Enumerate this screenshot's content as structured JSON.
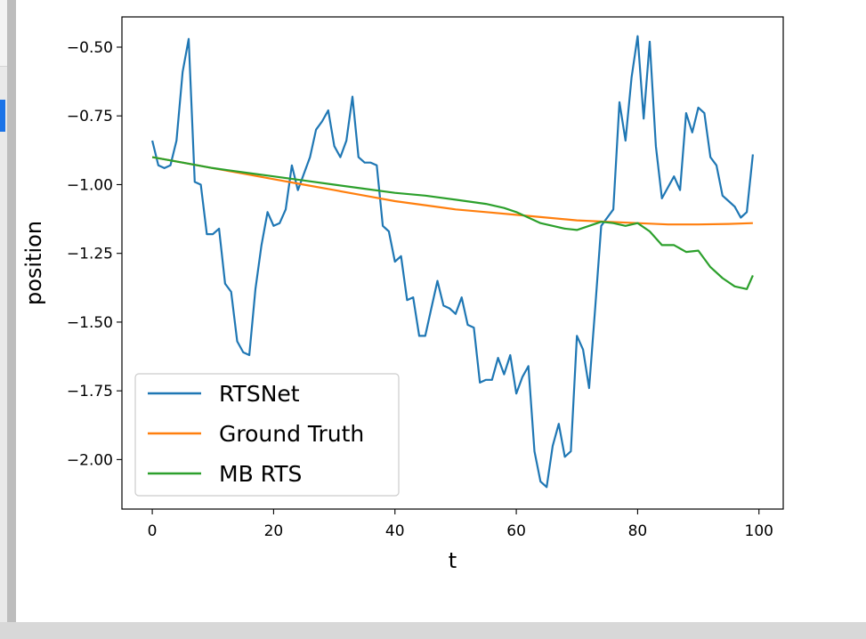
{
  "chart_data": {
    "type": "line",
    "xlabel": "t",
    "ylabel": "position",
    "xlim": [
      -5,
      104
    ],
    "ylim": [
      -2.18,
      -0.39
    ],
    "xticks": [
      0,
      20,
      40,
      60,
      80,
      100
    ],
    "xtick_labels": [
      "0",
      "20",
      "40",
      "60",
      "80",
      "100"
    ],
    "yticks": [
      -0.5,
      -0.75,
      -1.0,
      -1.25,
      -1.5,
      -1.75,
      -2.0
    ],
    "ytick_labels": [
      "−0.50",
      "−0.75",
      "−1.00",
      "−1.25",
      "−1.50",
      "−1.75",
      "−2.00"
    ],
    "grid": false,
    "legend_position": "bottom-left",
    "series": [
      {
        "name": "RTSNet",
        "color": "#1f77b4",
        "x": [
          0,
          1,
          2,
          3,
          4,
          5,
          6,
          7,
          8,
          9,
          10,
          11,
          12,
          13,
          14,
          15,
          16,
          17,
          18,
          19,
          20,
          21,
          22,
          23,
          24,
          25,
          26,
          27,
          28,
          29,
          30,
          31,
          32,
          33,
          34,
          35,
          36,
          37,
          38,
          39,
          40,
          41,
          42,
          43,
          44,
          45,
          46,
          47,
          48,
          49,
          50,
          51,
          52,
          53,
          54,
          55,
          56,
          57,
          58,
          59,
          60,
          61,
          62,
          63,
          64,
          65,
          66,
          67,
          68,
          69,
          70,
          71,
          72,
          73,
          74,
          75,
          76,
          77,
          78,
          79,
          80,
          81,
          82,
          83,
          84,
          85,
          86,
          87,
          88,
          89,
          90,
          91,
          92,
          93,
          94,
          95,
          96,
          97,
          98,
          99
        ],
        "y": [
          -0.84,
          -0.93,
          -0.94,
          -0.93,
          -0.84,
          -0.59,
          -0.47,
          -0.99,
          -1.0,
          -1.18,
          -1.18,
          -1.16,
          -1.36,
          -1.39,
          -1.57,
          -1.61,
          -1.62,
          -1.38,
          -1.22,
          -1.1,
          -1.15,
          -1.14,
          -1.09,
          -0.93,
          -1.02,
          -0.96,
          -0.9,
          -0.8,
          -0.77,
          -0.73,
          -0.86,
          -0.9,
          -0.84,
          -0.68,
          -0.9,
          -0.92,
          -0.92,
          -0.93,
          -1.15,
          -1.17,
          -1.28,
          -1.26,
          -1.42,
          -1.41,
          -1.55,
          -1.55,
          -1.45,
          -1.35,
          -1.44,
          -1.45,
          -1.47,
          -1.41,
          -1.51,
          -1.52,
          -1.72,
          -1.71,
          -1.71,
          -1.63,
          -1.69,
          -1.62,
          -1.76,
          -1.7,
          -1.66,
          -1.97,
          -2.08,
          -2.1,
          -1.95,
          -1.87,
          -1.99,
          -1.97,
          -1.55,
          -1.6,
          -1.74,
          -1.45,
          -1.15,
          -1.12,
          -1.09,
          -0.7,
          -0.84,
          -0.61,
          -0.46,
          -0.76,
          -0.48,
          -0.86,
          -1.05,
          -1.01,
          -0.97,
          -1.02,
          -0.74,
          -0.81,
          -0.72,
          -0.74,
          -0.9,
          -0.93,
          -1.04,
          -1.06,
          -1.08,
          -1.12,
          -1.1,
          -0.89
        ]
      },
      {
        "name": "Ground Truth",
        "color": "#ff7f0e",
        "x": [
          0,
          5,
          10,
          15,
          20,
          25,
          30,
          35,
          40,
          45,
          50,
          55,
          60,
          65,
          70,
          75,
          80,
          85,
          90,
          95,
          99
        ],
        "y": [
          -0.9,
          -0.92,
          -0.94,
          -0.96,
          -0.98,
          -1.0,
          -1.02,
          -1.04,
          -1.06,
          -1.075,
          -1.09,
          -1.1,
          -1.11,
          -1.12,
          -1.13,
          -1.135,
          -1.14,
          -1.145,
          -1.145,
          -1.143,
          -1.14
        ]
      },
      {
        "name": "MB RTS",
        "color": "#2ca02c",
        "x": [
          0,
          5,
          10,
          15,
          20,
          25,
          30,
          35,
          40,
          45,
          50,
          55,
          58,
          60,
          62,
          64,
          66,
          68,
          70,
          72,
          74,
          76,
          78,
          80,
          82,
          84,
          86,
          88,
          90,
          92,
          94,
          96,
          98,
          99
        ],
        "y": [
          -0.9,
          -0.92,
          -0.94,
          -0.955,
          -0.97,
          -0.985,
          -1.0,
          -1.015,
          -1.03,
          -1.04,
          -1.055,
          -1.07,
          -1.085,
          -1.1,
          -1.12,
          -1.14,
          -1.15,
          -1.16,
          -1.165,
          -1.15,
          -1.135,
          -1.14,
          -1.15,
          -1.14,
          -1.17,
          -1.22,
          -1.22,
          -1.245,
          -1.24,
          -1.3,
          -1.34,
          -1.37,
          -1.38,
          -1.33
        ]
      }
    ]
  }
}
